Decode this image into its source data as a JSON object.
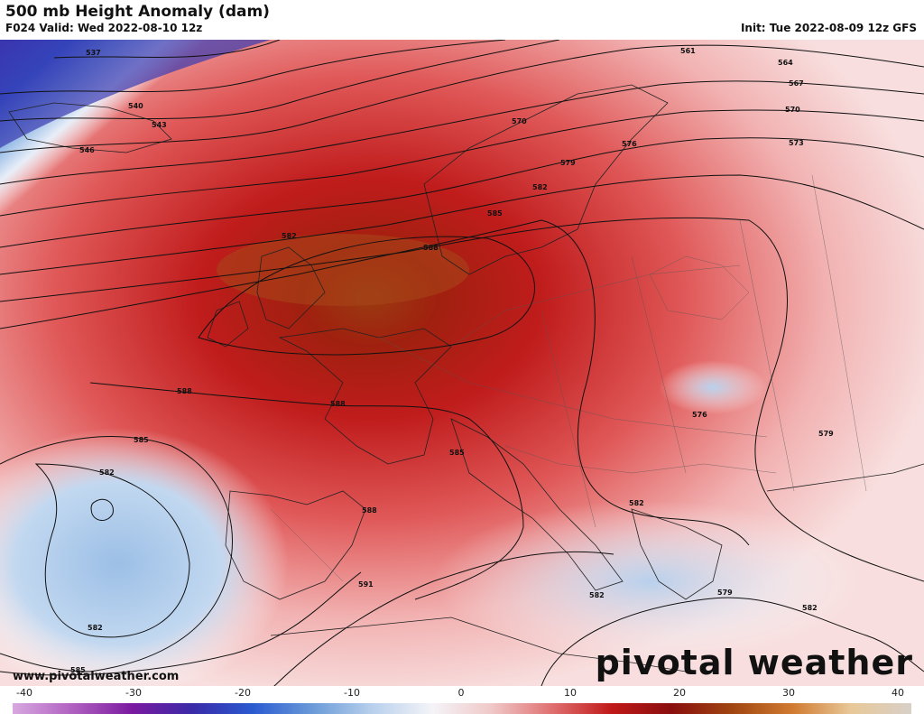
{
  "header": {
    "title": "500 mb Height Anomaly (dam)",
    "valid": "F024 Valid: Wed 2022-08-10 12z",
    "init": "Init: Tue 2022-08-09 12z GFS"
  },
  "footer": {
    "site": "www.pivotalweather.com",
    "brand": "pivotal weather"
  },
  "colorbar": {
    "ticks": [
      "-40",
      "-30",
      "-20",
      "-10",
      "0",
      "10",
      "20",
      "30",
      "40"
    ],
    "colors": [
      "#d8a8e0",
      "#b060c0",
      "#7a1aa0",
      "#3a2aa8",
      "#2a5ad0",
      "#6a9ad8",
      "#b8d0ec",
      "#f4f4f8",
      "#f0c8c8",
      "#e07070",
      "#c01818",
      "#8a0f0f",
      "#a04510",
      "#d07a30",
      "#e8c898",
      "#d8d0c8"
    ]
  },
  "contours": {
    "labels": [
      "537",
      "540",
      "543",
      "546",
      "561",
      "564",
      "567",
      "570",
      "570",
      "573",
      "576",
      "579",
      "582",
      "582",
      "585",
      "588",
      "588",
      "588",
      "588",
      "585",
      "585",
      "582",
      "582",
      "579",
      "576",
      "582",
      "579",
      "582",
      "582",
      "591",
      "588",
      "585",
      "582"
    ]
  }
}
